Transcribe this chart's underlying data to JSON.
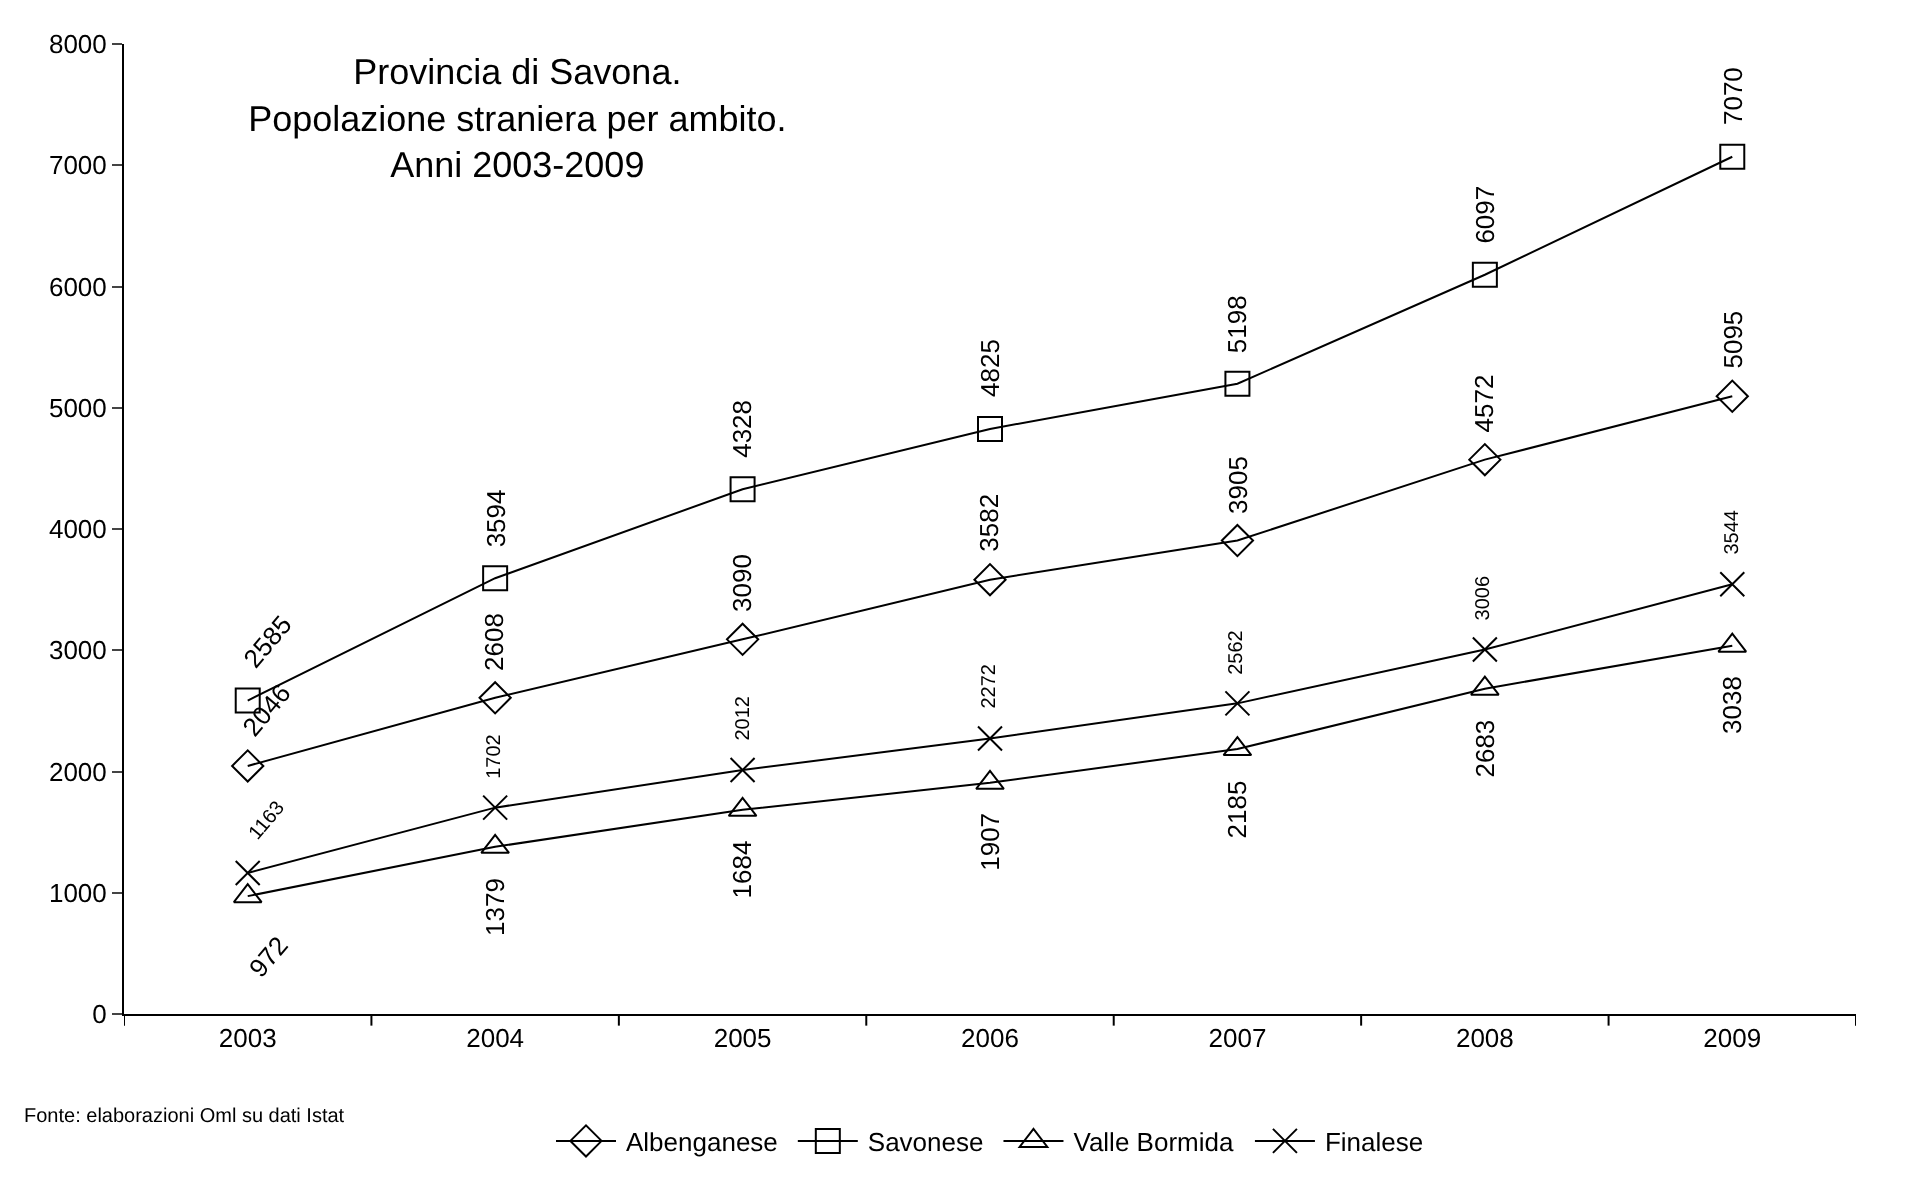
{
  "chart_data": {
    "type": "line",
    "title": "Provincia di Savona.\nPopolazione straniera per ambito.\nAnni 2003-2009",
    "categories": [
      "2003",
      "2004",
      "2005",
      "2006",
      "2007",
      "2008",
      "2009"
    ],
    "series": [
      {
        "name": "Albenganese",
        "color": "#000000",
        "marker": "diamond",
        "values": [
          2046,
          2608,
          3090,
          3582,
          3905,
          4572,
          5095
        ]
      },
      {
        "name": "Savonese",
        "color": "#000000",
        "marker": "square",
        "values": [
          2585,
          3594,
          4328,
          4825,
          5198,
          6097,
          7070
        ]
      },
      {
        "name": "Valle Bormida",
        "color": "#000000",
        "marker": "triangle",
        "values": [
          972,
          1379,
          1684,
          1907,
          2185,
          2683,
          3038
        ]
      },
      {
        "name": "Finalese",
        "color": "#000000",
        "marker": "cross",
        "values": [
          1163,
          1702,
          2012,
          2272,
          2562,
          3006,
          3544
        ]
      }
    ],
    "ylim": [
      0,
      8000
    ],
    "yticks": [
      0,
      1000,
      2000,
      3000,
      4000,
      5000,
      6000,
      7000,
      8000
    ],
    "legend": "bottom",
    "data_labels": true,
    "line_style": "solid",
    "annotations": [
      "Fonte: elaborazioni Oml su dati Istat"
    ]
  }
}
